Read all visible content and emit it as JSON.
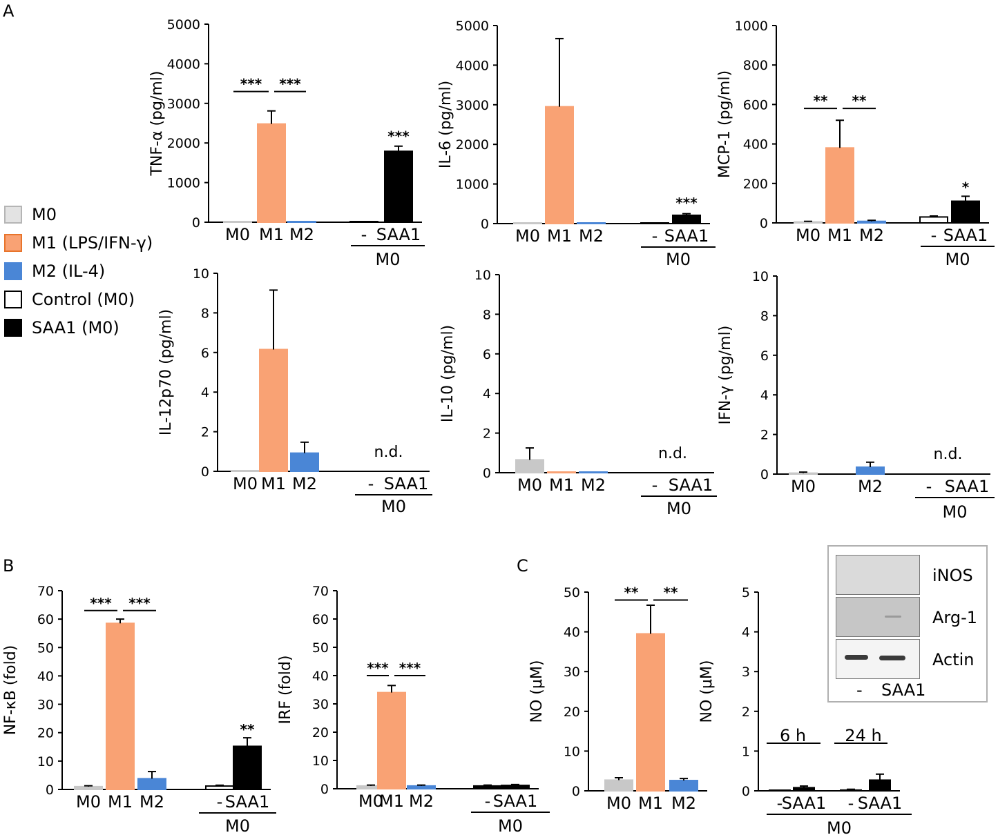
{
  "panel_labels": {
    "a": "A",
    "b": "B",
    "c": "C"
  },
  "legend": [
    {
      "label": "M0",
      "fill": "#e3e3e3",
      "stroke": "#b5b5b5"
    },
    {
      "label": "M1 (LPS/IFN-γ)",
      "fill": "#f9a274",
      "stroke": "#e8742b"
    },
    {
      "label": "M2 (IL-4)",
      "fill": "#4a86d6",
      "stroke": "#4a86d6"
    },
    {
      "label": "Control (M0)",
      "fill": "#ffffff",
      "stroke": "#000000"
    },
    {
      "label": "SAA1 (M0)",
      "fill": "#000000",
      "stroke": "#000000"
    }
  ],
  "colors": {
    "M0": "#c8c8c8",
    "M1": "#f9a274",
    "M2": "#4a86d6",
    "ctrl": "#ffffff",
    "SAA1": "#000000"
  },
  "blot": {
    "bands": [
      "iNOS",
      "Arg-1",
      "Actin"
    ],
    "lanes": [
      "-",
      "SAA1"
    ]
  },
  "chart_data": [
    {
      "id": "tnf",
      "type": "bar",
      "ylabel": "TNF-α (pg/ml)",
      "ylim": [
        0,
        5000
      ],
      "ticks": [
        "0",
        "1000",
        "2000",
        "3000",
        "4000",
        "5000"
      ],
      "categories": [
        "M0",
        "M1",
        "M2",
        "-",
        "SAA1"
      ],
      "series": [
        {
          "name": "TNF-α",
          "values": [
            0,
            2480,
            0,
            0,
            1790
          ],
          "errors": [
            0,
            330,
            0,
            0,
            130
          ]
        }
      ],
      "colors": [
        "M0",
        "M1",
        "M2",
        "ctrl",
        "SAA1"
      ],
      "group_label": "M0",
      "annotations": [
        {
          "type": "bracket",
          "from": 0,
          "to": 1,
          "value": 3300,
          "text": "***"
        },
        {
          "type": "bracket",
          "from": 1,
          "to": 2,
          "value": 3300,
          "text": "***"
        },
        {
          "type": "star",
          "at": 4,
          "value": 2050,
          "text": "***"
        }
      ]
    },
    {
      "id": "il6",
      "type": "bar",
      "ylabel": "IL-6 (pg/ml)",
      "ylim": [
        0,
        5000
      ],
      "ticks": [
        "0",
        "1000",
        "2000",
        "3000",
        "4000",
        "5000"
      ],
      "categories": [
        "M0",
        "M1",
        "M2",
        "-",
        "SAA1"
      ],
      "series": [
        {
          "name": "IL-6",
          "values": [
            0,
            2950,
            0,
            0,
            210
          ],
          "errors": [
            0,
            1720,
            0,
            0,
            40
          ]
        }
      ],
      "colors": [
        "M0",
        "M1",
        "M2",
        "ctrl",
        "SAA1"
      ],
      "group_label": "M0",
      "annotations": [
        {
          "type": "star",
          "at": 4,
          "value": 400,
          "text": "***"
        }
      ]
    },
    {
      "id": "mcp1",
      "type": "bar",
      "ylabel": "MCP-1 (pg/ml)",
      "ylim": [
        0,
        1000
      ],
      "ticks": [
        "0",
        "200",
        "400",
        "600",
        "800",
        "1000"
      ],
      "categories": [
        "M0",
        "M1",
        "M2",
        "-",
        "SAA1"
      ],
      "series": [
        {
          "name": "MCP-1",
          "values": [
            5,
            380,
            8,
            30,
            110
          ],
          "errors": [
            3,
            140,
            5,
            5,
            25
          ]
        }
      ],
      "colors": [
        "M0",
        "M1",
        "M2",
        "ctrl",
        "SAA1"
      ],
      "group_label": "M0",
      "annotations": [
        {
          "type": "bracket",
          "from": 0,
          "to": 1,
          "value": 580,
          "text": "**"
        },
        {
          "type": "bracket",
          "from": 1,
          "to": 2,
          "value": 580,
          "text": "**"
        },
        {
          "type": "star",
          "at": 4,
          "value": 155,
          "text": "*"
        }
      ]
    },
    {
      "id": "il12",
      "type": "bar",
      "ylabel": "IL-12p70 (pg/ml)",
      "ylim": [
        0,
        10
      ],
      "ticks": [
        "0",
        "2",
        "4",
        "6",
        "8",
        "10"
      ],
      "categories": [
        "M0",
        "M1",
        "M2",
        "-",
        "SAA1"
      ],
      "series": [
        {
          "name": "IL-12p70",
          "values": [
            0,
            6.15,
            0.92,
            null,
            null
          ],
          "errors": [
            0,
            3.0,
            0.55,
            0,
            0
          ]
        }
      ],
      "colors": [
        "M0",
        "M1",
        "M2",
        "ctrl",
        "SAA1"
      ],
      "group_label": "M0",
      "nd": "n.d.",
      "annotations": []
    },
    {
      "id": "il10",
      "type": "bar",
      "ylabel": "IL-10 (pg/ml)",
      "ylim": [
        0,
        10
      ],
      "ticks": [
        "0",
        "2",
        "4",
        "6",
        "8",
        "10"
      ],
      "categories": [
        "M0",
        "M1",
        "M2",
        "-",
        "SAA1"
      ],
      "series": [
        {
          "name": "IL-10",
          "values": [
            0.65,
            0,
            0,
            null,
            null
          ],
          "errors": [
            0.6,
            0,
            0,
            0,
            0
          ]
        }
      ],
      "colors": [
        "M0",
        "M1",
        "M2",
        "ctrl",
        "SAA1"
      ],
      "group_label": "M0",
      "nd": "n.d.",
      "annotations": []
    },
    {
      "id": "ifng",
      "type": "bar",
      "ylabel": "IFN-γ (pg/ml)",
      "ylim": [
        0,
        10
      ],
      "ticks": [
        "0",
        "2",
        "4",
        "6",
        "8",
        "10"
      ],
      "categories": [
        "M0",
        "M2",
        "-",
        "SAA1"
      ],
      "series": [
        {
          "name": "IFN-γ",
          "values": [
            0.05,
            0.35,
            null,
            null
          ],
          "errors": [
            0.05,
            0.25,
            0,
            0
          ]
        }
      ],
      "colors": [
        "M0",
        "M2",
        "ctrl",
        "SAA1"
      ],
      "group_label": "M0",
      "nd": "n.d.",
      "annotations": []
    },
    {
      "id": "nfkb",
      "type": "bar",
      "ylabel": "NF-κB (fold)",
      "ylim": [
        0,
        70
      ],
      "ticks": [
        "0",
        "10",
        "20",
        "30",
        "40",
        "50",
        "60",
        "70"
      ],
      "categories": [
        "M0",
        "M1",
        "M2",
        "-",
        "SAA1"
      ],
      "series": [
        {
          "name": "NF-κB",
          "values": [
            1,
            58.5,
            3.8,
            1.2,
            15.2
          ],
          "errors": [
            0.3,
            1.5,
            2.5,
            0.3,
            3.0
          ]
        }
      ],
      "colors": [
        "M0",
        "M1",
        "M2",
        "ctrl",
        "SAA1"
      ],
      "group_label": "M0",
      "annotations": [
        {
          "type": "bracket",
          "from": 0,
          "to": 1,
          "value": 63,
          "text": "***"
        },
        {
          "type": "bracket",
          "from": 1,
          "to": 2,
          "value": 63,
          "text": "***"
        },
        {
          "type": "star",
          "at": 4,
          "value": 19.5,
          "text": "**"
        }
      ]
    },
    {
      "id": "irf",
      "type": "bar",
      "ylabel": "IRF (fold)",
      "ylim": [
        0,
        70
      ],
      "ticks": [
        "0",
        "10",
        "20",
        "30",
        "40",
        "50",
        "60",
        "70"
      ],
      "categories": [
        "M0",
        "M1",
        "M2",
        "-",
        "SAA1"
      ],
      "series": [
        {
          "name": "IRF",
          "values": [
            1,
            34,
            1,
            1,
            1.2
          ],
          "errors": [
            0.3,
            2.5,
            0.3,
            0.3,
            0.3
          ]
        }
      ],
      "colors": [
        "M0",
        "M1",
        "M2",
        "SAA1",
        "SAA1"
      ],
      "group_label": "M0",
      "annotations": [
        {
          "type": "bracket",
          "from": 0,
          "to": 1,
          "value": 40,
          "text": "***"
        },
        {
          "type": "bracket",
          "from": 1,
          "to": 2,
          "value": 40,
          "text": "***"
        }
      ]
    },
    {
      "id": "no1",
      "type": "bar",
      "ylabel": "NO (μM)",
      "ylim": [
        0,
        50
      ],
      "ticks": [
        "0",
        "10",
        "20",
        "30",
        "40",
        "50"
      ],
      "categories": [
        "M0",
        "M1",
        "M2"
      ],
      "series": [
        {
          "name": "NO",
          "values": [
            2.7,
            39.5,
            2.6
          ],
          "errors": [
            0.6,
            7.2,
            0.5
          ]
        }
      ],
      "colors": [
        "M0",
        "M1",
        "M2"
      ],
      "annotations": [
        {
          "type": "bracket",
          "from": 0,
          "to": 1,
          "value": 48,
          "text": "**"
        },
        {
          "type": "bracket",
          "from": 1,
          "to": 2,
          "value": 48,
          "text": "**"
        }
      ]
    },
    {
      "id": "no2",
      "type": "bar",
      "ylabel": "NO (μM)",
      "ylim": [
        0,
        5
      ],
      "ticks": [
        "0",
        "1",
        "2",
        "3",
        "4",
        "5"
      ],
      "categories": [
        "-",
        "SAA1",
        "-",
        "SAA1"
      ],
      "series": [
        {
          "name": "NO",
          "values": [
            0.0,
            0.08,
            0.02,
            0.27
          ],
          "errors": [
            0,
            0.04,
            0.02,
            0.15
          ]
        }
      ],
      "colors": [
        "SAA1",
        "SAA1",
        "SAA1",
        "SAA1"
      ],
      "group_label": "M0",
      "time_labels": [
        "6 h",
        "24 h"
      ],
      "annotations": []
    }
  ]
}
